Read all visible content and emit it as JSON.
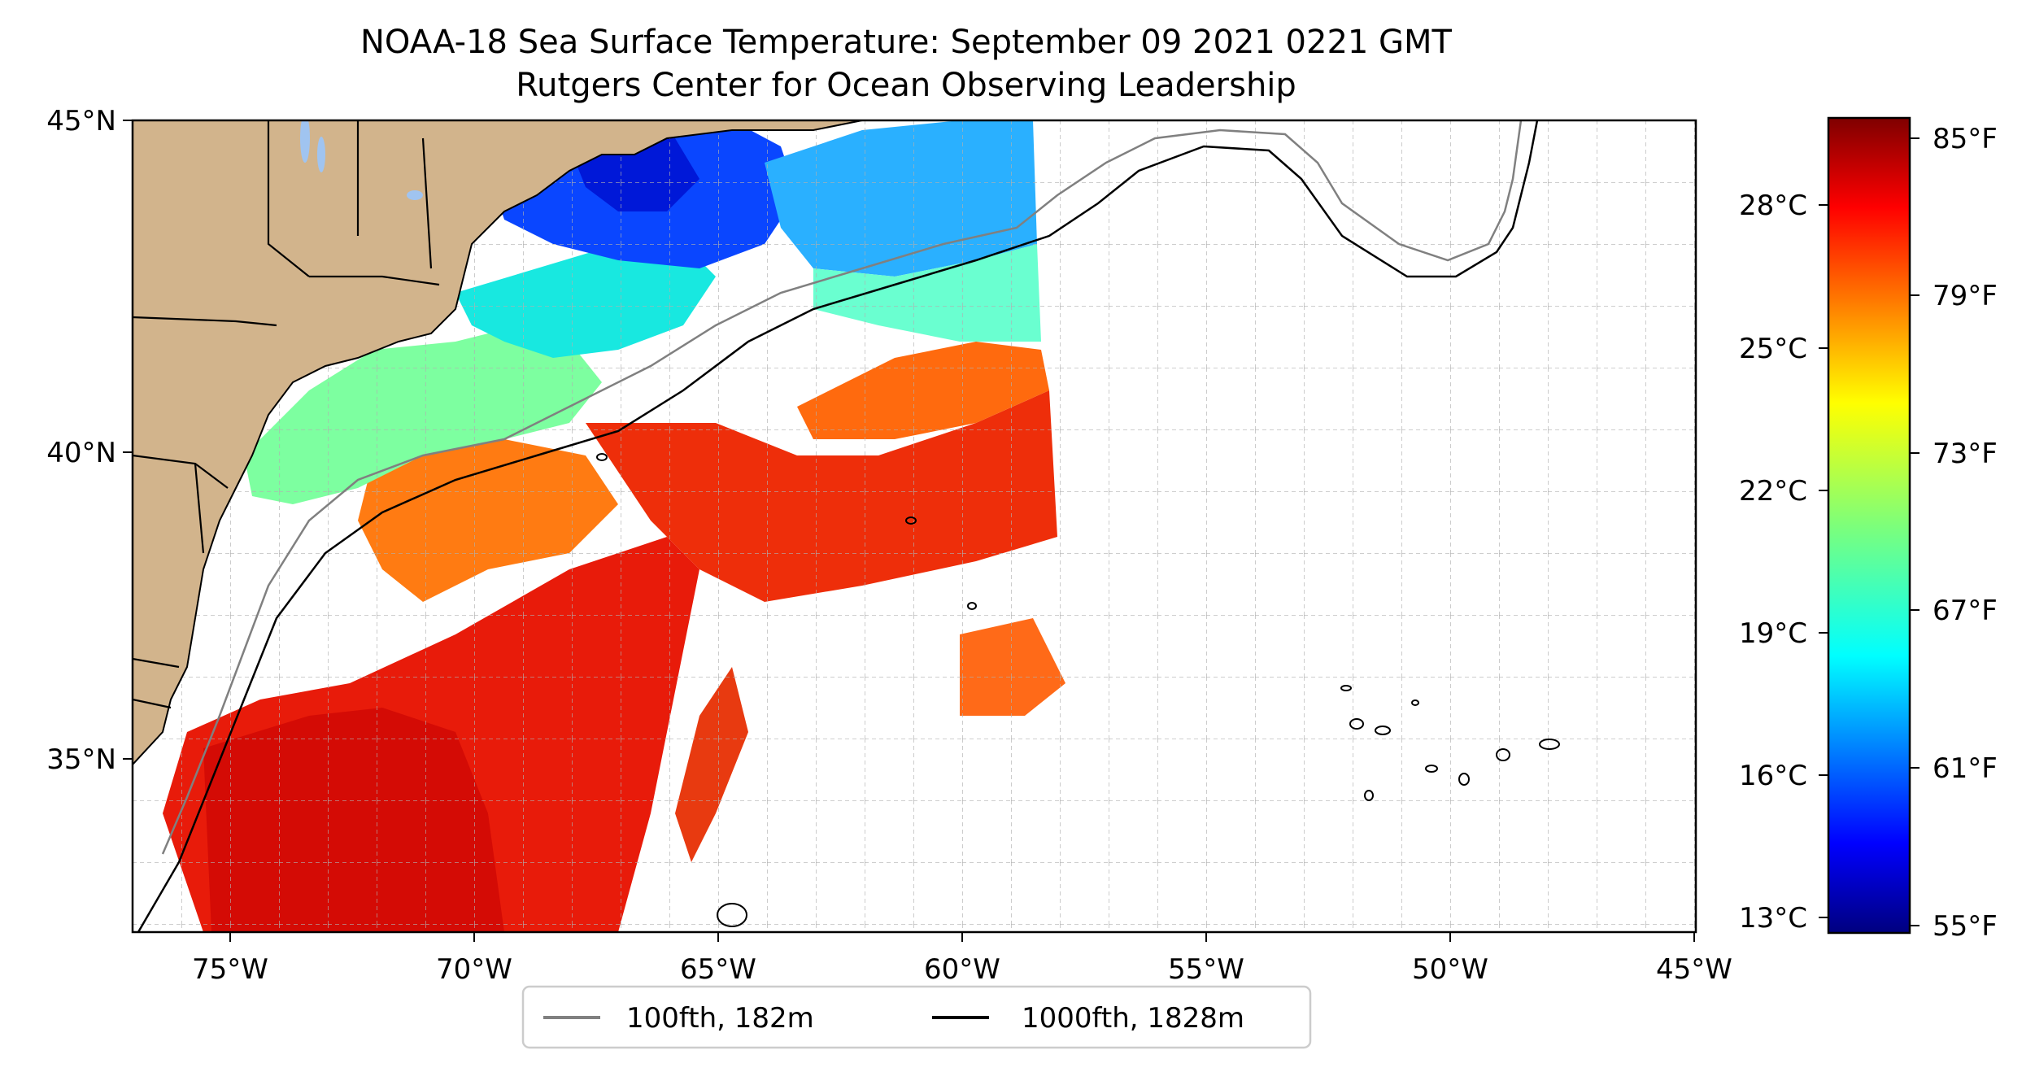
{
  "title": {
    "line1": "NOAA-18 Sea Surface Temperature: September 09 2021 0221 GMT",
    "line2": "Rutgers Center for Ocean Observing Leadership"
  },
  "map": {
    "lon_range": [
      -77,
      -45
    ],
    "lat_range": [
      32.3,
      45
    ],
    "lon_ticks": [
      "75°W",
      "70°W",
      "65°W",
      "60°W",
      "55°W",
      "50°W",
      "45°W"
    ],
    "lat_ticks": [
      "45°N",
      "40°N",
      "35°N"
    ],
    "gridlines": true,
    "land_color": "#d2b48c"
  },
  "colorbar": {
    "celsius_ticks": [
      "28°C",
      "25°C",
      "22°C",
      "19°C",
      "16°C",
      "13°C"
    ],
    "fahrenheit_ticks": [
      "85°F",
      "79°F",
      "73°F",
      "67°F",
      "61°F",
      "55°F"
    ],
    "colormap": "jet",
    "range_f": [
      55,
      86
    ]
  },
  "legend": {
    "items": [
      {
        "label": "100fth, 182m",
        "color": "#808080"
      },
      {
        "label": "1000fth, 1828m",
        "color": "#000000"
      }
    ],
    "placement": "bottom-center"
  }
}
